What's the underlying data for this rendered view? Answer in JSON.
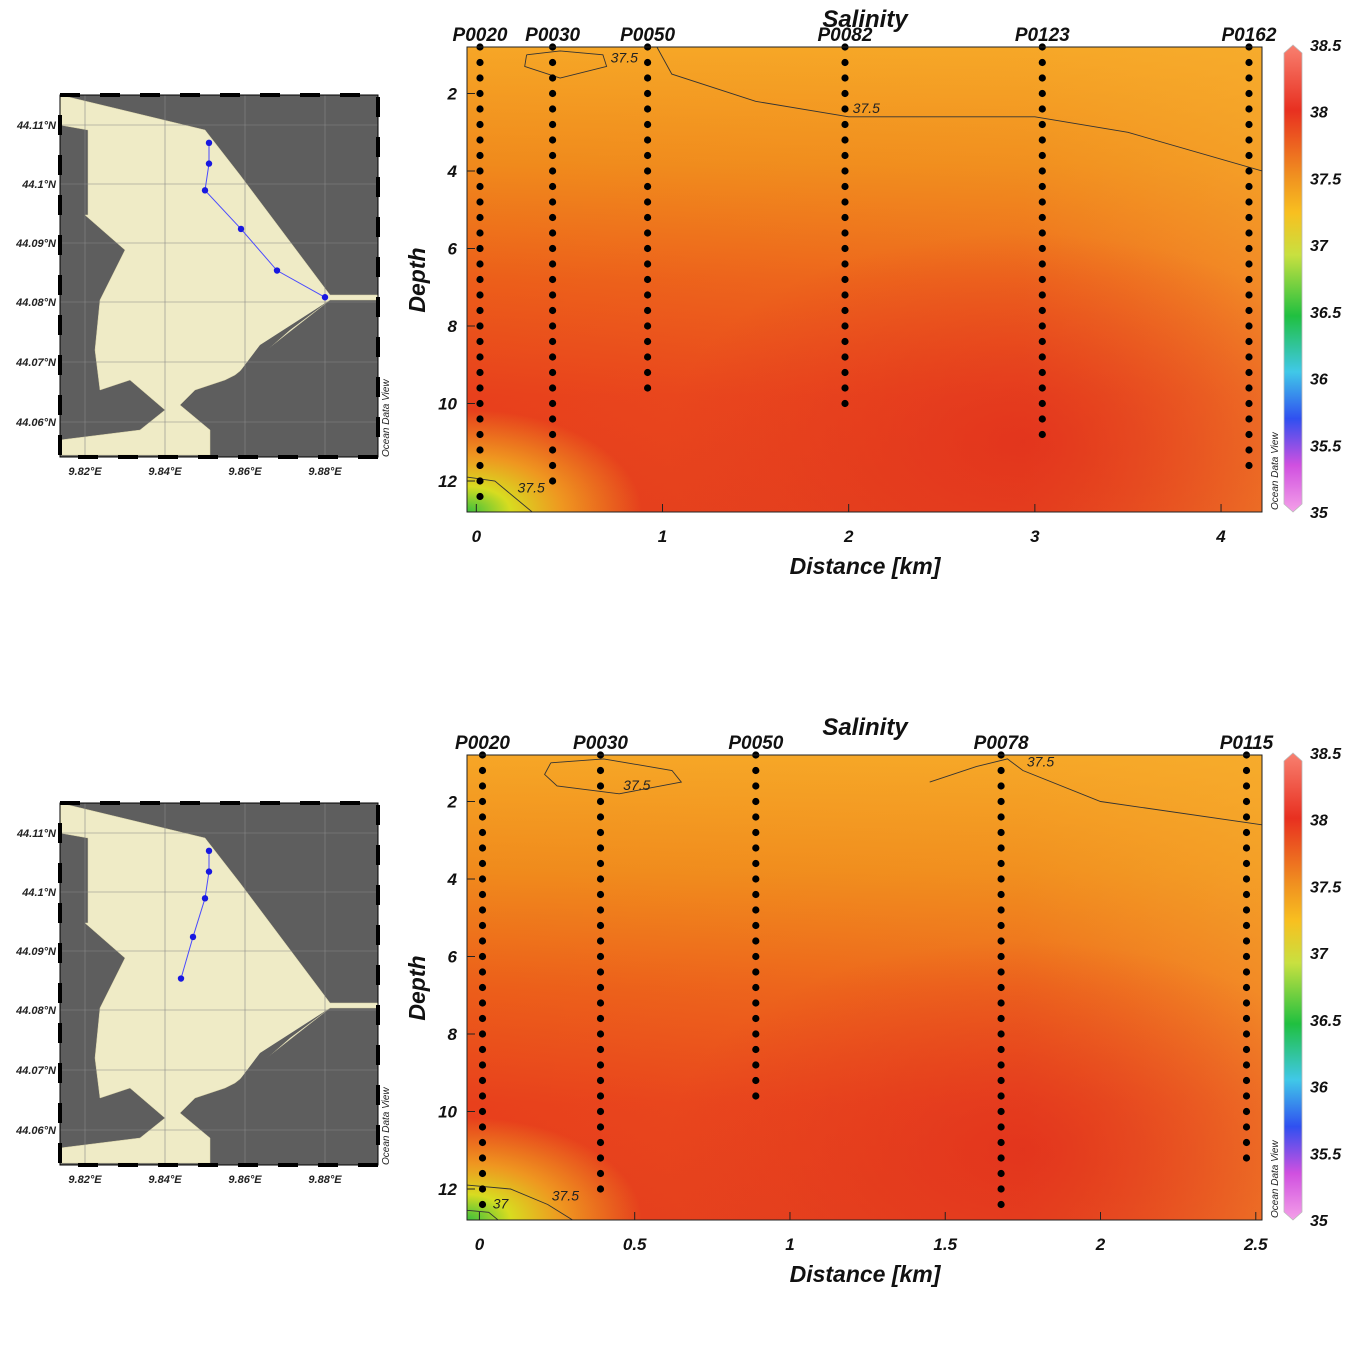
{
  "chart_data": [
    {
      "type": "heatmap",
      "title": "Salinity",
      "xlabel": "Distance [km]",
      "ylabel": "Depth",
      "xlim": [
        -0.05,
        4.22
      ],
      "ylim": [
        12.8,
        0.8
      ],
      "xticks": [
        0,
        1,
        2,
        3,
        4
      ],
      "yticks": [
        2,
        4,
        6,
        8,
        10,
        12
      ],
      "colorbar": {
        "min": 35,
        "max": 38.5,
        "ticks": [
          "35",
          "35.5",
          "36",
          "36.5",
          "37",
          "37.5",
          "38",
          "38.5"
        ]
      },
      "watermark": "Ocean Data View",
      "stations": [
        {
          "name": "P0020",
          "distance": 0.02,
          "max_depth": 12.7
        },
        {
          "name": "P0030",
          "distance": 0.41,
          "max_depth": 12.3
        },
        {
          "name": "P0050",
          "distance": 0.92,
          "max_depth": 9.8
        },
        {
          "name": "P0082",
          "distance": 1.98,
          "max_depth": 10.3
        },
        {
          "name": "P0123",
          "distance": 3.04,
          "max_depth": 10.8
        },
        {
          "name": "P0162",
          "distance": 4.15,
          "max_depth": 11.8
        }
      ],
      "contours": [
        {
          "level": "37.5",
          "points": [
            [
              0.27,
              1.0
            ],
            [
              0.45,
              0.9
            ],
            [
              0.68,
              1.0
            ],
            [
              0.7,
              1.3
            ],
            [
              0.45,
              1.6
            ],
            [
              0.26,
              1.3
            ],
            [
              0.27,
              1.0
            ]
          ]
        },
        {
          "level": "37.5",
          "points": [
            [
              0.97,
              0.8
            ],
            [
              1.05,
              1.5
            ],
            [
              1.5,
              2.2
            ],
            [
              2.0,
              2.6
            ],
            [
              3.0,
              2.6
            ],
            [
              3.5,
              3.0
            ],
            [
              4.22,
              4.0
            ]
          ]
        },
        {
          "level": "37.5",
          "points": [
            [
              -0.05,
              11.9
            ],
            [
              0.1,
              12.0
            ],
            [
              0.2,
              12.4
            ],
            [
              0.3,
              12.8
            ]
          ]
        }
      ],
      "inset_map": {
        "lat_labels": [
          "44.11°N",
          "44.1°N",
          "44.09°N",
          "44.08°N",
          "44.07°N",
          "44.06°N"
        ],
        "lon_labels": [
          "9.82°E",
          "9.84°E",
          "9.86°E",
          "9.88°E"
        ],
        "watermark": "Ocean Data View",
        "track": [
          [
            9.851,
            44.107
          ],
          [
            9.851,
            44.1035
          ],
          [
            9.85,
            44.099
          ],
          [
            9.859,
            44.0925
          ],
          [
            9.868,
            44.0855
          ],
          [
            9.88,
            44.081
          ]
        ]
      }
    },
    {
      "type": "heatmap",
      "title": "Salinity",
      "xlabel": "Distance [km]",
      "ylabel": "Depth",
      "xlim": [
        -0.04,
        2.52
      ],
      "ylim": [
        12.8,
        0.8
      ],
      "xticks": [
        0,
        0.5,
        1,
        1.5,
        2,
        2.5
      ],
      "yticks": [
        2,
        4,
        6,
        8,
        10,
        12
      ],
      "colorbar": {
        "min": 35,
        "max": 38.5,
        "ticks": [
          "35",
          "35.5",
          "36",
          "36.5",
          "37",
          "37.5",
          "38",
          "38.5"
        ]
      },
      "watermark": "Ocean Data View",
      "stations": [
        {
          "name": "P0020",
          "distance": 0.01,
          "max_depth": 12.7
        },
        {
          "name": "P0030",
          "distance": 0.39,
          "max_depth": 12.3
        },
        {
          "name": "P0050",
          "distance": 0.89,
          "max_depth": 9.8
        },
        {
          "name": "P0078",
          "distance": 1.68,
          "max_depth": 12.7
        },
        {
          "name": "P0115",
          "distance": 2.47,
          "max_depth": 11.3
        }
      ],
      "contours": [
        {
          "level": "37.5",
          "points": [
            [
              0.23,
              1.0
            ],
            [
              0.4,
              0.9
            ],
            [
              0.62,
              1.2
            ],
            [
              0.65,
              1.5
            ],
            [
              0.45,
              1.8
            ],
            [
              0.25,
              1.6
            ],
            [
              0.21,
              1.3
            ],
            [
              0.23,
              1.0
            ]
          ]
        },
        {
          "level": "37.5",
          "points": [
            [
              1.45,
              1.5
            ],
            [
              1.6,
              1.1
            ],
            [
              1.7,
              0.9
            ],
            [
              1.75,
              1.2
            ],
            [
              2.0,
              2.0
            ],
            [
              2.52,
              2.6
            ]
          ]
        },
        {
          "level": "37.5",
          "points": [
            [
              -0.04,
              11.9
            ],
            [
              0.1,
              12.0
            ],
            [
              0.22,
              12.4
            ],
            [
              0.3,
              12.8
            ]
          ]
        },
        {
          "level": "37",
          "points": [
            [
              -0.04,
              12.55
            ],
            [
              0.03,
              12.6
            ],
            [
              0.06,
              12.8
            ]
          ]
        }
      ],
      "inset_map": {
        "lat_labels": [
          "44.11°N",
          "44.1°N",
          "44.09°N",
          "44.08°N",
          "44.07°N",
          "44.06°N"
        ],
        "lon_labels": [
          "9.82°E",
          "9.84°E",
          "9.86°E",
          "9.88°E"
        ],
        "watermark": "Ocean Data View",
        "track": [
          [
            9.851,
            44.107
          ],
          [
            9.851,
            44.1035
          ],
          [
            9.85,
            44.099
          ],
          [
            9.847,
            44.0925
          ],
          [
            9.844,
            44.0855
          ]
        ]
      }
    }
  ]
}
